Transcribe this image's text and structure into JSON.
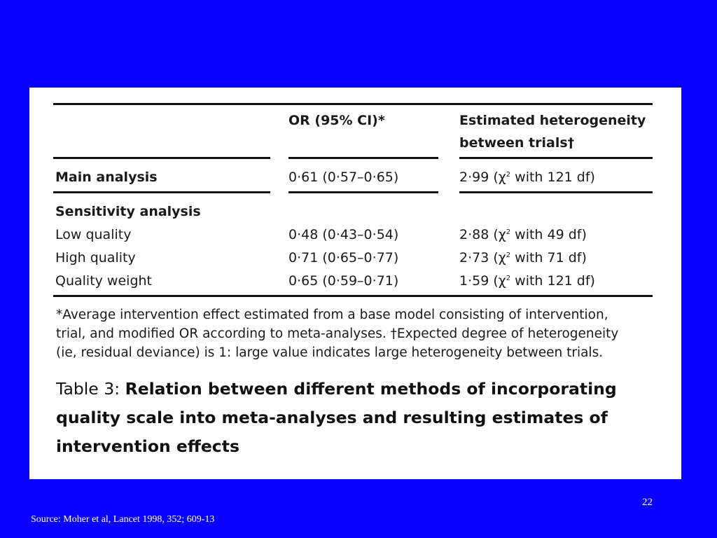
{
  "table": {
    "headers": {
      "or_col": "OR (95% CI)*",
      "het_col_line1": "Estimated heterogeneity",
      "het_col_line2": "between trials†"
    },
    "main_row": {
      "label": "Main analysis",
      "or": "0·61 (0·57–0·65)",
      "het_prefix": "2·99 (χ",
      "het_sup": "2",
      "het_suffix": " with 121 df)"
    },
    "sensitivity_heading": "Sensitivity analysis",
    "rows": [
      {
        "label": "Low quality",
        "or": "0·48 (0·43–0·54)",
        "het_prefix": "2·88 (χ",
        "het_sup": "2",
        "het_suffix": " with 49 df)"
      },
      {
        "label": "High quality",
        "or": "0·71 (0·65–0·77)",
        "het_prefix": "2·73 (χ",
        "het_sup": "2",
        "het_suffix": " with 71 df)"
      },
      {
        "label": "Quality weight",
        "or": "0·65 (0·59–0·71)",
        "het_prefix": "1·59 (χ",
        "het_sup": "2",
        "het_suffix": " with 121 df)"
      }
    ]
  },
  "footnote": {
    "line1": "*Average intervention effect estimated from a base model consisting of intervention,",
    "line2": "trial, and modified OR according to meta-analyses. †Expected degree of heterogeneity",
    "line3": "(ie, residual deviance) is 1: large value indicates large heterogeneity between trials."
  },
  "caption": {
    "prefix": "Table 3: ",
    "line1": "Relation between different methods of incorporating",
    "line2": "quality scale into meta-analyses and resulting estimates of",
    "line3": "intervention effects"
  },
  "slide": {
    "page_number": "22",
    "source": "Source: Moher et al, Lancet 1998, 352; 609-13"
  },
  "colors": {
    "background": "#0a00ff",
    "panel": "#ffffff",
    "text": "#1a1a1a"
  }
}
